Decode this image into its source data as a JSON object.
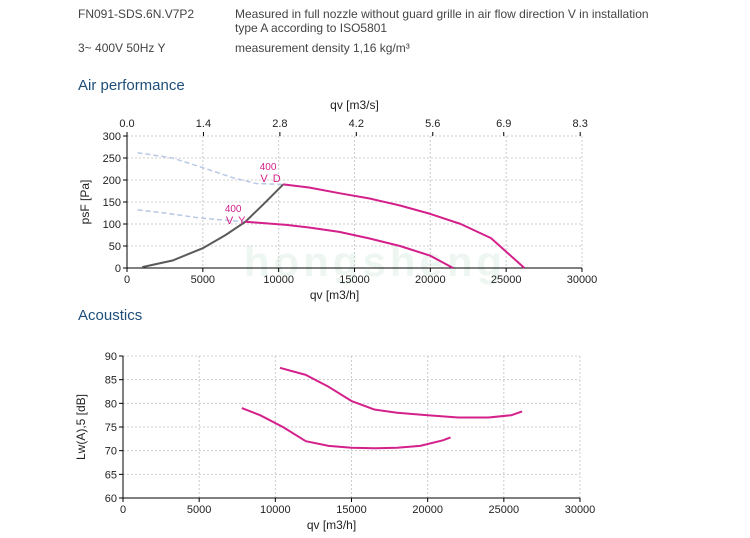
{
  "header": {
    "model": "FN091-SDS.6N.V7P2",
    "note_line1": "Measured in full nozzle without guard grille in air flow direction V in installation",
    "note_line2": "type A according to ISO5801",
    "supply": "3~ 400V 50Hz Y",
    "density": "measurement density 1,16 kg/m³"
  },
  "sections": {
    "air_title": "Air performance",
    "acoustics_title": "Acoustics"
  },
  "watermark": "hongsheng",
  "colors": {
    "curve": "#d4208a",
    "system": "#5a5a5a",
    "dashed": "#b8c8e4",
    "axis": "#000000",
    "grid": "#cccccc",
    "title": "#1f4e79"
  },
  "chart_data": [
    {
      "type": "line",
      "title": "Air performance",
      "xlabel": "qv [m3/h]",
      "ylabel": "psF [Pa]",
      "x2label": "qv [m3/s]",
      "xlim": [
        0,
        30000
      ],
      "ylim": [
        0,
        300
      ],
      "xticks": [
        "0",
        "5000",
        "10000",
        "15000",
        "20000",
        "25000",
        "30000"
      ],
      "yticks": [
        "0",
        "50",
        "100",
        "150",
        "200",
        "250",
        "300"
      ],
      "x2ticks": [
        {
          "x": 0,
          "label": "0.0"
        },
        {
          "x": 5040,
          "label": "1.4"
        },
        {
          "x": 10080,
          "label": "2.8"
        },
        {
          "x": 15120,
          "label": "4.2"
        },
        {
          "x": 20160,
          "label": "5.6"
        },
        {
          "x": 24840,
          "label": "6.9"
        },
        {
          "x": 29880,
          "label": "8.3"
        }
      ],
      "grid": true,
      "series": [
        {
          "name": "400 V D",
          "label_line1": "400",
          "label_line2": "V D",
          "label_at": [
            9300,
            223
          ],
          "x": [
            10300,
            12000,
            14000,
            16000,
            18000,
            20000,
            22000,
            24000,
            26200
          ],
          "y": [
            190,
            183,
            170,
            158,
            142,
            123,
            100,
            68,
            0
          ]
        },
        {
          "name": "400 V Y",
          "label_line1": "400",
          "label_line2": "V Y",
          "label_at": [
            7000,
            127
          ],
          "x": [
            7800,
            9000,
            10500,
            12000,
            14000,
            16000,
            18000,
            20000,
            21500
          ],
          "y": [
            105,
            102,
            98,
            92,
            82,
            67,
            50,
            28,
            0
          ]
        }
      ],
      "system_curve": {
        "x": [
          1000,
          3000,
          5000,
          6500,
          7800,
          9000,
          10300
        ],
        "y": [
          2,
          17,
          45,
          75,
          105,
          145,
          190
        ]
      },
      "dashed_curves": [
        {
          "x": [
            700,
            3000,
            5000,
            7000,
            8500,
            10300
          ],
          "y": [
            262,
            250,
            228,
            205,
            192,
            190
          ]
        },
        {
          "x": [
            700,
            2500,
            4500,
            6000,
            7800
          ],
          "y": [
            132,
            125,
            115,
            110,
            105
          ]
        }
      ]
    },
    {
      "type": "line",
      "title": "Acoustics",
      "xlabel": "qv [m3/h]",
      "ylabel": "Lw(A),5 [dB]",
      "xlim": [
        0,
        30000
      ],
      "ylim": [
        60,
        90
      ],
      "xticks": [
        "0",
        "5000",
        "10000",
        "15000",
        "20000",
        "25000",
        "30000"
      ],
      "yticks": [
        "60",
        "65",
        "70",
        "75",
        "80",
        "85",
        "90"
      ],
      "grid": true,
      "series": [
        {
          "name": "400 V D",
          "x": [
            10300,
            12000,
            13500,
            15000,
            16500,
            18000,
            20000,
            22000,
            24000,
            25500,
            26200
          ],
          "y": [
            87.5,
            86,
            83.5,
            80.5,
            78.7,
            78,
            77.5,
            77,
            77,
            77.5,
            78.3
          ]
        },
        {
          "name": "400 V Y",
          "x": [
            7800,
            9000,
            10500,
            12000,
            13500,
            15000,
            16500,
            18000,
            19500,
            21000,
            21500
          ],
          "y": [
            79,
            77.5,
            75,
            72,
            71,
            70.6,
            70.5,
            70.6,
            71,
            72.2,
            72.8
          ]
        }
      ]
    }
  ]
}
